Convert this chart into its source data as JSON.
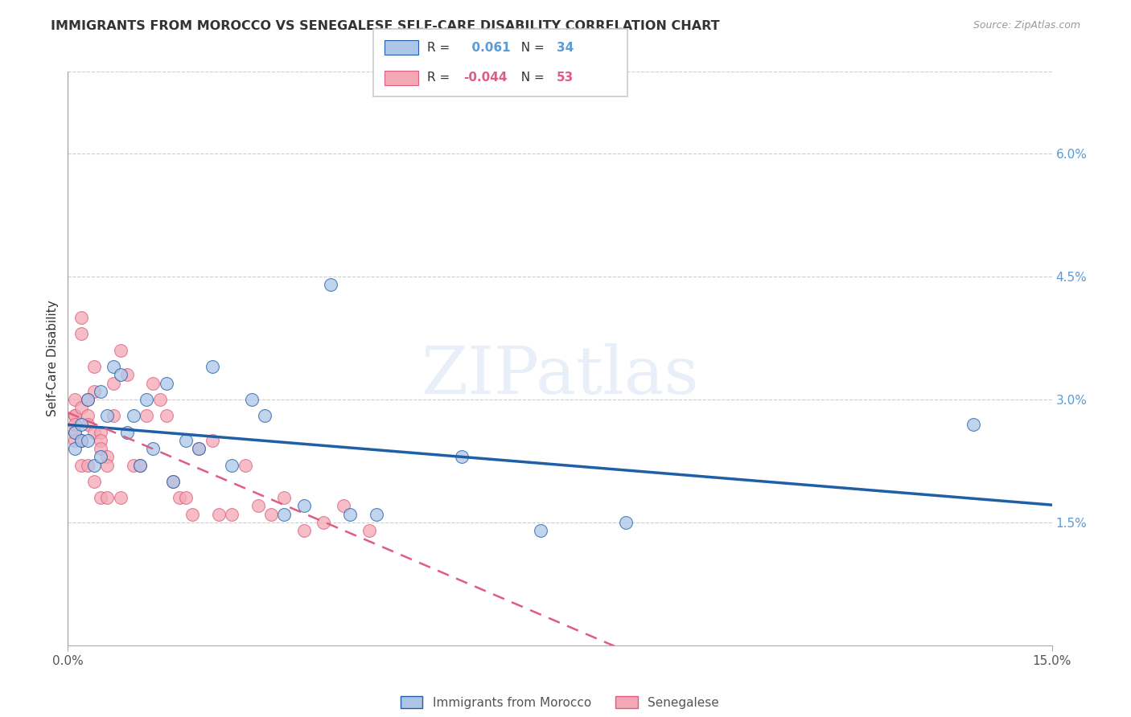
{
  "title": "IMMIGRANTS FROM MOROCCO VS SENEGALESE SELF-CARE DISABILITY CORRELATION CHART",
  "source": "Source: ZipAtlas.com",
  "ylabel": "Self-Care Disability",
  "right_yticks": [
    "6.0%",
    "4.5%",
    "3.0%",
    "1.5%"
  ],
  "right_ytick_vals": [
    0.06,
    0.045,
    0.03,
    0.015
  ],
  "legend_labels": [
    "Immigrants from Morocco",
    "Senegalese"
  ],
  "morocco_R": 0.061,
  "morocco_N": 34,
  "senegal_R": -0.044,
  "senegal_N": 53,
  "morocco_color": "#adc6e8",
  "senegal_color": "#f4a7b5",
  "morocco_line_color": "#1f5fa6",
  "senegal_line_color": "#e05c80",
  "watermark": "ZIPatlas",
  "xlim": [
    0.0,
    0.15
  ],
  "ylim": [
    0.0,
    0.07
  ],
  "morocco_x": [
    0.001,
    0.001,
    0.002,
    0.002,
    0.003,
    0.003,
    0.004,
    0.005,
    0.005,
    0.006,
    0.007,
    0.008,
    0.009,
    0.01,
    0.011,
    0.012,
    0.013,
    0.015,
    0.016,
    0.018,
    0.02,
    0.022,
    0.025,
    0.028,
    0.03,
    0.033,
    0.036,
    0.04,
    0.043,
    0.047,
    0.06,
    0.072,
    0.085,
    0.138
  ],
  "morocco_y": [
    0.026,
    0.024,
    0.027,
    0.025,
    0.03,
    0.025,
    0.022,
    0.031,
    0.023,
    0.028,
    0.034,
    0.033,
    0.026,
    0.028,
    0.022,
    0.03,
    0.024,
    0.032,
    0.02,
    0.025,
    0.024,
    0.034,
    0.022,
    0.03,
    0.028,
    0.016,
    0.017,
    0.044,
    0.016,
    0.016,
    0.023,
    0.014,
    0.015,
    0.027
  ],
  "senegal_x": [
    0.001,
    0.001,
    0.001,
    0.001,
    0.001,
    0.001,
    0.002,
    0.002,
    0.002,
    0.002,
    0.002,
    0.003,
    0.003,
    0.003,
    0.003,
    0.004,
    0.004,
    0.004,
    0.004,
    0.005,
    0.005,
    0.005,
    0.005,
    0.006,
    0.006,
    0.006,
    0.007,
    0.007,
    0.008,
    0.008,
    0.009,
    0.01,
    0.011,
    0.012,
    0.013,
    0.014,
    0.015,
    0.016,
    0.017,
    0.018,
    0.019,
    0.02,
    0.022,
    0.023,
    0.025,
    0.027,
    0.029,
    0.031,
    0.033,
    0.036,
    0.039,
    0.042,
    0.046
  ],
  "senegal_y": [
    0.028,
    0.026,
    0.028,
    0.025,
    0.03,
    0.027,
    0.04,
    0.038,
    0.029,
    0.025,
    0.022,
    0.03,
    0.028,
    0.027,
    0.022,
    0.026,
    0.034,
    0.031,
    0.02,
    0.026,
    0.025,
    0.024,
    0.018,
    0.023,
    0.022,
    0.018,
    0.032,
    0.028,
    0.036,
    0.018,
    0.033,
    0.022,
    0.022,
    0.028,
    0.032,
    0.03,
    0.028,
    0.02,
    0.018,
    0.018,
    0.016,
    0.024,
    0.025,
    0.016,
    0.016,
    0.022,
    0.017,
    0.016,
    0.018,
    0.014,
    0.015,
    0.017,
    0.014
  ]
}
